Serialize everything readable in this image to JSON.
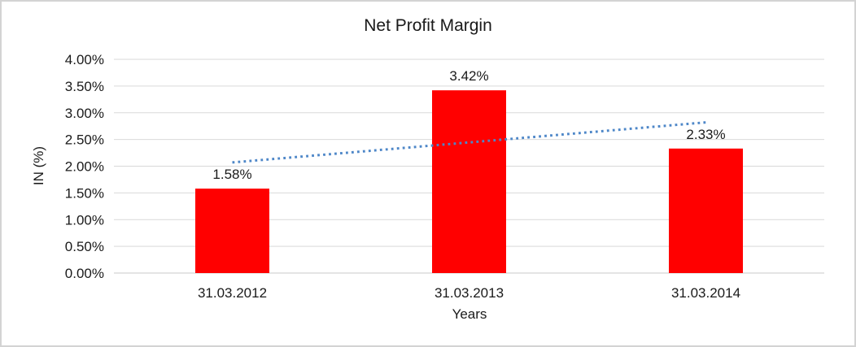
{
  "frame": {
    "background": "#FFFFFF",
    "border_color": "#D3D3D3"
  },
  "chart_data": {
    "type": "bar",
    "title": "Net Profit Margin",
    "categories": [
      "31.03.2012",
      "31.03.2013",
      "31.03.2014"
    ],
    "values": [
      1.58,
      3.42,
      2.33
    ],
    "data_labels": [
      "1.58%",
      "3.42%",
      "2.33%"
    ],
    "xlabel": "Years",
    "ylabel": "IN (%)",
    "ylim": [
      0,
      4
    ],
    "yticks": [
      {
        "v": 0.0,
        "label": "0.00%"
      },
      {
        "v": 0.5,
        "label": "0.50%"
      },
      {
        "v": 1.0,
        "label": "1.00%"
      },
      {
        "v": 1.5,
        "label": "1.50%"
      },
      {
        "v": 2.0,
        "label": "2.00%"
      },
      {
        "v": 2.5,
        "label": "2.50%"
      },
      {
        "v": 3.0,
        "label": "3.00%"
      },
      {
        "v": 3.5,
        "label": "3.50%"
      },
      {
        "v": 4.0,
        "label": "4.00%"
      }
    ],
    "grid": true,
    "legend": "none",
    "bar_color": "#FF0000",
    "gridline_color": "#D9D9D9",
    "axis_line_color": "#C9C9C9",
    "text_color": "#1A1A1A",
    "trendline": {
      "type": "linear",
      "style": "dotted",
      "color": "#4E87C8",
      "start_value": 2.07,
      "end_value": 2.82
    }
  }
}
